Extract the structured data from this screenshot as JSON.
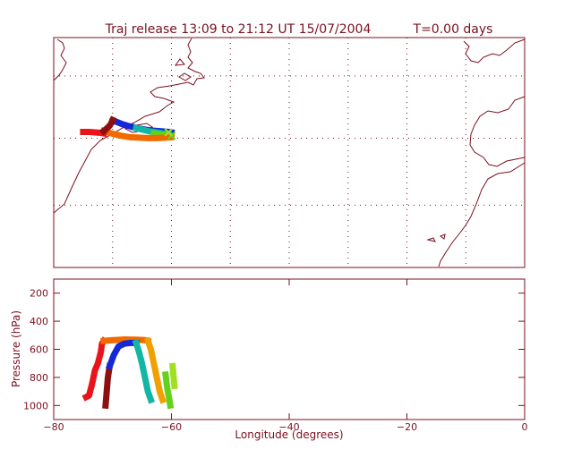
{
  "title": "Traj release 13:09 to 21:12 UT 15/07/2004",
  "time_label": "T=0.00 days",
  "colors": {
    "frame": "#7a1020",
    "grid": "#7a1020",
    "coast": "#7a1020"
  },
  "chart_data": [
    {
      "type": "map",
      "grid": true,
      "grid_style": "dotted",
      "xlim": [
        -80,
        0
      ],
      "ylim": [
        20,
        68
      ],
      "map_trajectories": [
        {
          "color": "#1428d6",
          "x": [
            -70,
            -69.5,
            -68.5,
            -67.5,
            -66.5,
            -65.5,
            -64.5,
            -63.5,
            -62.5,
            -61.5,
            -60.5,
            -60
          ],
          "y": [
            50.5,
            50.5,
            50.0,
            49.6,
            49.3,
            49.0,
            48.8,
            48.6,
            48.5,
            48.4,
            48.3,
            48.2
          ]
        },
        {
          "color": "#12b6a4",
          "x": [
            -66,
            -65,
            -64,
            -63,
            -62,
            -61.5,
            -61,
            -60.5
          ],
          "y": [
            49.1,
            48.8,
            48.5,
            48.3,
            48.1,
            48.0,
            47.9,
            47.9
          ]
        },
        {
          "color": "#62d21a",
          "x": [
            -63,
            -62,
            -61,
            -60.5,
            -60
          ],
          "y": [
            48.0,
            47.8,
            47.7,
            47.6,
            47.5
          ]
        },
        {
          "color": "#f06a00",
          "x": [
            -71.5,
            -70,
            -68.5,
            -67,
            -65.5,
            -64,
            -62.5,
            -61,
            -60
          ],
          "y": [
            48.5,
            47.9,
            47.5,
            47.2,
            47.1,
            47.0,
            47.0,
            47.1,
            47.2
          ]
        },
        {
          "color": "#e8141a",
          "x": [
            -75,
            -74,
            -73,
            -72,
            -71.5
          ],
          "y": [
            48.3,
            48.3,
            48.2,
            48.1,
            48.0
          ]
        },
        {
          "color": "#8c1010",
          "x": [
            -71.5,
            -71,
            -70.5,
            -70.2,
            -70
          ],
          "y": [
            48.5,
            49.0,
            49.6,
            50.2,
            50.8
          ]
        }
      ],
      "release_markers": [
        {
          "x": -60,
          "y": 47.5,
          "color": "#62d21a"
        },
        {
          "x": -60.5,
          "y": 48.2,
          "color": "#a0e020"
        }
      ]
    },
    {
      "type": "line",
      "xlabel": "Longitude  (degrees)",
      "ylabel": "Pressure  (hPa)",
      "xlim": [
        -80,
        0
      ],
      "ylim": [
        1100,
        100
      ],
      "xticks": [
        -80,
        -60,
        -40,
        -20,
        0
      ],
      "yticks": [
        200,
        400,
        600,
        800,
        1000
      ],
      "grid": false,
      "series": [
        {
          "color": "#e8141a",
          "x": [
            -74.5,
            -74,
            -73.5,
            -73,
            -72.5,
            -72,
            -71.8,
            -71.5
          ],
          "y": [
            940,
            930,
            850,
            750,
            700,
            620,
            560,
            540
          ]
        },
        {
          "color": "#f06a00",
          "x": [
            -71.5,
            -70,
            -68,
            -66,
            -64.5,
            -64
          ],
          "y": [
            540,
            535,
            530,
            532,
            535,
            540
          ]
        },
        {
          "color": "#f0a000",
          "x": [
            -64,
            -63.5,
            -63,
            -62.5,
            -62,
            -61.5
          ],
          "y": [
            540,
            600,
            700,
            800,
            900,
            960
          ]
        },
        {
          "color": "#8c1010",
          "x": [
            -71.2,
            -71,
            -70.8,
            -70.5
          ],
          "y": [
            1000,
            900,
            800,
            720
          ]
        },
        {
          "color": "#1428d6",
          "x": [
            -70.5,
            -69.8,
            -69,
            -68,
            -67,
            -66
          ],
          "y": [
            720,
            640,
            580,
            560,
            555,
            555
          ]
        },
        {
          "color": "#12b6a4",
          "x": [
            -66,
            -65.5,
            -65,
            -64.5,
            -64,
            -63.5
          ],
          "y": [
            555,
            620,
            700,
            800,
            900,
            960
          ]
        },
        {
          "color": "#62d21a",
          "x": [
            -61,
            -60.7,
            -60.4,
            -60.2
          ],
          "y": [
            780,
            880,
            950,
            1000
          ]
        },
        {
          "color": "#a0e020",
          "x": [
            -59.8,
            -59.5
          ],
          "y": [
            720,
            860
          ]
        }
      ]
    }
  ]
}
